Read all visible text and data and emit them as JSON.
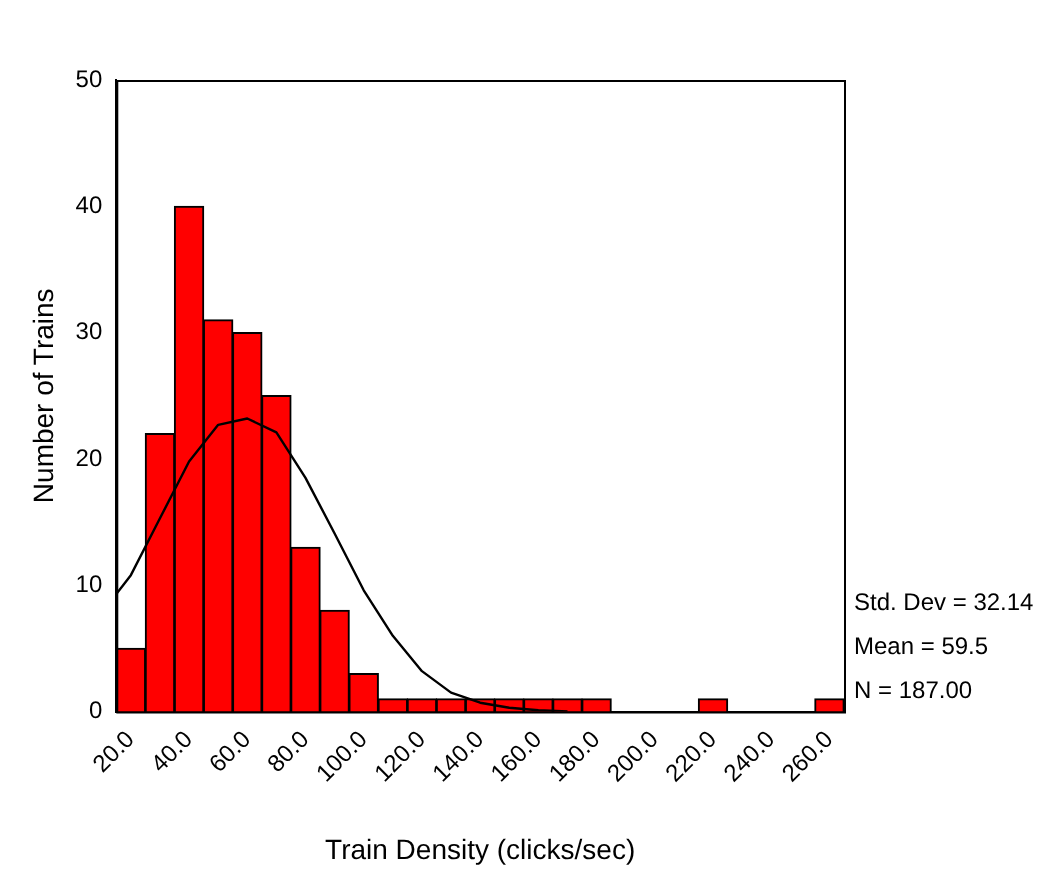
{
  "chart_data": {
    "type": "histogram",
    "xlabel": "Train Density (clicks/sec)",
    "ylabel": "Number of Trains",
    "bins": [
      15,
      25,
      35,
      45,
      55,
      65,
      75,
      85,
      95,
      105,
      115,
      125,
      135,
      145,
      155,
      165,
      175,
      185,
      195,
      205,
      215,
      225,
      235,
      245,
      255,
      265
    ],
    "values": [
      5,
      22,
      40,
      31,
      30,
      25,
      13,
      8,
      3,
      1,
      1,
      1,
      1,
      1,
      1,
      1,
      1,
      0,
      0,
      0,
      1,
      0,
      0,
      0,
      1
    ],
    "color": "#ff0000",
    "series": [
      {
        "type": "line",
        "color": "#000000",
        "x": [
          15,
          20,
          30,
          40,
          50,
          60,
          70,
          80,
          90,
          100,
          110,
          120,
          130,
          140,
          150,
          160,
          170
        ],
        "values": [
          9.3,
          10.8,
          15.3,
          19.8,
          22.7,
          23.2,
          22.1,
          18.5,
          14.1,
          9.6,
          6.0,
          3.2,
          1.5,
          0.7,
          0.3,
          0.1,
          0
        ]
      }
    ],
    "xlim": [
      15,
      265
    ],
    "xticks": [
      {
        "value": 20,
        "label": "20.0"
      },
      {
        "value": 40,
        "label": "40.0"
      },
      {
        "value": 60,
        "label": "60.0"
      },
      {
        "value": 80,
        "label": "80.0"
      },
      {
        "value": 100,
        "label": "100.0"
      },
      {
        "value": 120,
        "label": "120.0"
      },
      {
        "value": 140,
        "label": "140.0"
      },
      {
        "value": 160,
        "label": "160.0"
      },
      {
        "value": 180,
        "label": "180.0"
      },
      {
        "value": 200,
        "label": "200.0"
      },
      {
        "value": 220,
        "label": "220.0"
      },
      {
        "value": 240,
        "label": "240.0"
      },
      {
        "value": 260,
        "label": "260.0"
      }
    ],
    "ylim": [
      0,
      50
    ],
    "yticks": [
      0,
      10,
      20,
      30,
      40,
      50
    ],
    "annotations": [
      "Std. Dev = 32.14",
      "Mean = 59.5",
      "N = 187.00"
    ]
  }
}
